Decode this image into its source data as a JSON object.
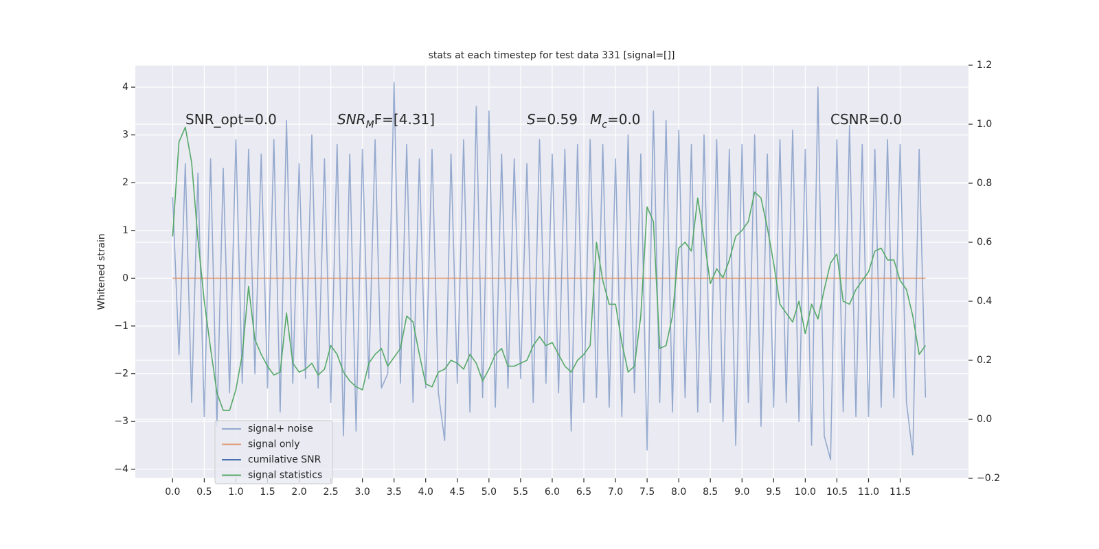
{
  "chart_data": {
    "type": "line",
    "title": "stats at each timestep for test data 331 [signal=[]]",
    "ylabel": "Whitened strain",
    "annotations": [
      [
        "SNR_opt=0.0"
      ],
      [
        "SNR",
        "M",
        "F=[4.31]"
      ],
      [
        "S",
        "",
        "=0.59"
      ],
      [
        "M",
        "c",
        "=0.0"
      ],
      [
        "CSNR=0.0"
      ]
    ],
    "x": [
      0.0,
      0.1,
      0.2,
      0.3,
      0.4,
      0.5,
      0.6,
      0.7,
      0.8,
      0.9,
      1.0,
      1.1,
      1.2,
      1.3,
      1.4,
      1.5,
      1.6,
      1.7,
      1.8,
      1.9,
      2.0,
      2.1,
      2.2,
      2.3,
      2.4,
      2.5,
      2.6,
      2.7,
      2.8,
      2.9,
      3.0,
      3.1,
      3.2,
      3.3,
      3.4,
      3.5,
      3.6,
      3.7,
      3.8,
      3.9,
      4.0,
      4.1,
      4.2,
      4.3,
      4.4,
      4.5,
      4.6,
      4.7,
      4.8,
      4.9,
      5.0,
      5.1,
      5.2,
      5.3,
      5.4,
      5.5,
      5.6,
      5.7,
      5.8,
      5.9,
      6.0,
      6.1,
      6.2,
      6.3,
      6.4,
      6.5,
      6.6,
      6.7,
      6.8,
      6.9,
      7.0,
      7.1,
      7.2,
      7.3,
      7.4,
      7.5,
      7.6,
      7.7,
      7.8,
      7.9,
      8.0,
      8.1,
      8.2,
      8.3,
      8.4,
      8.5,
      8.6,
      8.7,
      8.8,
      8.9,
      9.0,
      9.1,
      9.2,
      9.3,
      9.4,
      9.5,
      9.6,
      9.7,
      9.8,
      9.9,
      10.0,
      10.1,
      10.2,
      10.3,
      10.4,
      10.5,
      10.6,
      10.7,
      10.8,
      10.9,
      11.0,
      11.1,
      11.2,
      11.3,
      11.4,
      11.5,
      11.6,
      11.7,
      11.8,
      11.9
    ],
    "series": [
      {
        "name": "signal+ noise",
        "color": "#4c72b0",
        "alpha": 0.55,
        "axis": "y",
        "values": [
          1.7,
          -1.6,
          2.4,
          -2.6,
          2.2,
          -2.9,
          2.5,
          -3.1,
          2.3,
          -2.4,
          2.9,
          -2.2,
          2.7,
          -2.0,
          2.6,
          -2.3,
          2.9,
          -2.8,
          3.3,
          -2.2,
          2.4,
          -2.1,
          3.0,
          -2.3,
          2.5,
          -2.6,
          2.8,
          -3.3,
          2.6,
          -3.2,
          2.7,
          -2.1,
          2.9,
          -2.3,
          -2.0,
          4.1,
          -2.2,
          2.8,
          -2.6,
          2.5,
          -2.3,
          2.7,
          -2.4,
          -3.4,
          2.6,
          -2.2,
          2.9,
          -2.8,
          3.6,
          -2.5,
          3.5,
          -2.7,
          2.6,
          -2.3,
          2.5,
          -2.1,
          2.4,
          -2.6,
          2.9,
          -2.2,
          2.6,
          -2.4,
          2.7,
          -3.2,
          2.8,
          -2.6,
          2.9,
          -2.5,
          2.8,
          -2.7,
          2.5,
          -2.9,
          3.0,
          -2.4,
          2.6,
          -3.6,
          3.5,
          -2.6,
          3.3,
          -2.8,
          3.1,
          -2.5,
          2.8,
          -2.8,
          3.0,
          -2.6,
          2.9,
          -3.0,
          2.7,
          -3.5,
          2.8,
          -2.6,
          3.0,
          -3.1,
          2.6,
          -2.7,
          2.9,
          -2.6,
          3.1,
          -3.0,
          2.7,
          -3.5,
          4.0,
          -3.3,
          -3.8,
          2.9,
          -2.8,
          3.2,
          -2.9,
          2.8,
          -2.9,
          2.7,
          -2.7,
          2.9,
          -2.5,
          2.8,
          -2.6,
          -3.7,
          2.7,
          -2.5
        ]
      },
      {
        "name": "signal only",
        "color": "#dd8452",
        "alpha": 0.8,
        "axis": "y",
        "values": [
          0,
          0,
          0,
          0,
          0,
          0,
          0,
          0,
          0,
          0,
          0,
          0,
          0,
          0,
          0,
          0,
          0,
          0,
          0,
          0,
          0,
          0,
          0,
          0,
          0,
          0,
          0,
          0,
          0,
          0,
          0,
          0,
          0,
          0,
          0,
          0,
          0,
          0,
          0,
          0,
          0,
          0,
          0,
          0,
          0,
          0,
          0,
          0,
          0,
          0,
          0,
          0,
          0,
          0,
          0,
          0,
          0,
          0,
          0,
          0,
          0,
          0,
          0,
          0,
          0,
          0,
          0,
          0,
          0,
          0,
          0,
          0,
          0,
          0,
          0,
          0,
          0,
          0,
          0,
          0,
          0,
          0,
          0,
          0,
          0,
          0,
          0,
          0,
          0,
          0,
          0,
          0,
          0,
          0,
          0,
          0,
          0,
          0,
          0,
          0,
          0,
          0,
          0,
          0,
          0,
          0,
          0,
          0,
          0,
          0,
          0,
          0,
          0,
          0,
          0,
          0,
          0,
          0,
          0,
          0
        ]
      },
      {
        "name": "cumilative SNR",
        "color": "#4c72b0",
        "alpha": 1,
        "axis": "y2",
        "values": [
          null,
          null,
          null,
          null,
          null,
          null,
          null,
          null,
          null,
          null,
          null,
          null,
          null,
          null,
          null,
          null,
          null,
          null,
          null,
          null,
          null,
          null,
          null,
          null,
          null,
          null,
          null,
          null,
          null,
          null,
          null,
          null,
          null,
          null,
          null,
          null,
          null,
          null,
          null,
          null,
          null,
          null,
          null,
          null,
          null,
          null,
          null,
          null,
          null,
          null,
          null,
          null,
          null,
          null,
          null,
          null,
          null,
          null,
          null,
          null,
          null,
          null,
          null,
          null,
          null,
          null,
          null,
          null,
          null,
          null,
          null,
          null,
          null,
          null,
          null,
          null,
          null,
          null,
          null,
          null,
          null,
          null,
          null,
          null,
          null,
          null,
          null,
          null,
          null,
          null,
          null,
          null,
          null,
          null,
          null,
          null,
          null,
          null,
          null,
          null,
          null,
          null,
          null,
          null,
          null,
          null,
          null,
          null,
          null,
          null,
          null,
          null,
          null,
          null,
          null,
          null,
          null,
          null,
          null,
          null
        ]
      },
      {
        "name": "signal statistics",
        "color": "#55a868",
        "alpha": 1,
        "axis": "y2",
        "values": [
          0.62,
          0.94,
          0.99,
          0.87,
          0.61,
          0.4,
          0.24,
          0.09,
          0.03,
          0.03,
          0.1,
          0.22,
          0.45,
          0.27,
          0.22,
          0.18,
          0.15,
          0.16,
          0.36,
          0.19,
          0.16,
          0.17,
          0.19,
          0.15,
          0.17,
          0.25,
          0.22,
          0.16,
          0.13,
          0.11,
          0.1,
          0.19,
          0.22,
          0.24,
          0.18,
          0.21,
          0.24,
          0.35,
          0.33,
          0.22,
          0.12,
          0.11,
          0.16,
          0.17,
          0.2,
          0.19,
          0.17,
          0.22,
          0.19,
          0.13,
          0.17,
          0.22,
          0.24,
          0.18,
          0.18,
          0.19,
          0.2,
          0.25,
          0.28,
          0.25,
          0.26,
          0.22,
          0.18,
          0.16,
          0.2,
          0.22,
          0.25,
          0.6,
          0.47,
          0.39,
          0.39,
          0.26,
          0.16,
          0.18,
          0.35,
          0.72,
          0.67,
          0.24,
          0.25,
          0.35,
          0.58,
          0.6,
          0.57,
          0.75,
          0.61,
          0.46,
          0.51,
          0.48,
          0.54,
          0.62,
          0.64,
          0.67,
          0.77,
          0.75,
          0.65,
          0.53,
          0.39,
          0.36,
          0.33,
          0.4,
          0.29,
          0.39,
          0.34,
          0.44,
          0.53,
          0.56,
          0.4,
          0.39,
          0.44,
          0.47,
          0.5,
          0.57,
          0.58,
          0.54,
          0.54,
          0.47,
          0.44,
          0.35,
          0.22,
          0.25
        ]
      }
    ],
    "xlim": [
      -0.59,
      12.58
    ],
    "xticks": [
      {
        "value": 0,
        "label": "0.0"
      },
      0.5,
      {
        "value": 1,
        "label": "1.0"
      },
      1.5,
      {
        "value": 2,
        "label": "2.0"
      },
      2.5,
      {
        "value": 3,
        "label": "3.0"
      },
      3.5,
      {
        "value": 4,
        "label": "4.0"
      },
      4.5,
      {
        "value": 5,
        "label": "5.0"
      },
      5.5,
      {
        "value": 6,
        "label": "6.0"
      },
      6.5,
      {
        "value": 7,
        "label": "7.0"
      },
      7.5,
      {
        "value": 8,
        "label": "8.0"
      },
      8.5,
      {
        "value": 9,
        "label": "9.0"
      },
      9.5,
      {
        "value": 10,
        "label": "10.0"
      },
      10.5,
      {
        "value": 11,
        "label": "11.0"
      },
      11.5
    ],
    "ylim": [
      -4.19,
      4.46
    ],
    "yticks": [
      {
        "value": -4,
        "label": "−4"
      },
      {
        "value": -3,
        "label": "−3"
      },
      {
        "value": -2,
        "label": "−2"
      },
      {
        "value": -1,
        "label": "−1"
      },
      0,
      1,
      2,
      3,
      4
    ],
    "y2lim": [
      -0.2,
      1.2
    ],
    "y2ticks": [
      {
        "value": -0.2,
        "label": "−0.2"
      },
      {
        "value": 0,
        "label": "0.0"
      },
      0.2,
      0.4,
      0.6,
      0.8,
      {
        "value": 1,
        "label": "1.0"
      },
      1.2
    ],
    "grid": true,
    "legend": "lower left"
  }
}
